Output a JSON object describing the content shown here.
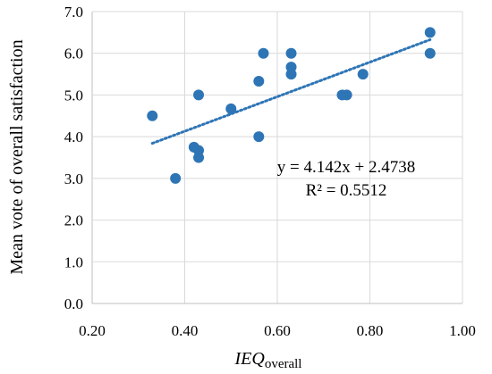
{
  "chart_data": {
    "type": "scatter",
    "xlabel_main": "IEQ",
    "xlabel_sub": "overall",
    "ylabel": "Mean vote of overall satisfaction",
    "xlim": [
      0.2,
      1.0
    ],
    "ylim": [
      0.0,
      7.0
    ],
    "x_ticks": [
      "0.20",
      "0.40",
      "0.60",
      "0.80",
      "1.00"
    ],
    "y_ticks": [
      "0.0",
      "1.0",
      "2.0",
      "3.0",
      "4.0",
      "5.0",
      "6.0",
      "7.0"
    ],
    "x_tick_values": [
      0.2,
      0.4,
      0.6,
      0.8,
      1.0
    ],
    "y_tick_values": [
      0,
      1,
      2,
      3,
      4,
      5,
      6,
      7
    ],
    "grid": "vertical and horizontal",
    "point_color": "#2e75b6",
    "trend_color": "#2e75b6",
    "points": [
      {
        "x": 0.33,
        "y": 4.5
      },
      {
        "x": 0.38,
        "y": 3.0
      },
      {
        "x": 0.42,
        "y": 3.75
      },
      {
        "x": 0.43,
        "y": 3.67
      },
      {
        "x": 0.43,
        "y": 3.5
      },
      {
        "x": 0.43,
        "y": 5.0
      },
      {
        "x": 0.5,
        "y": 4.67
      },
      {
        "x": 0.56,
        "y": 5.33
      },
      {
        "x": 0.56,
        "y": 4.0
      },
      {
        "x": 0.57,
        "y": 6.0
      },
      {
        "x": 0.63,
        "y": 6.0
      },
      {
        "x": 0.63,
        "y": 5.67
      },
      {
        "x": 0.63,
        "y": 5.5
      },
      {
        "x": 0.74,
        "y": 5.0
      },
      {
        "x": 0.75,
        "y": 5.0
      },
      {
        "x": 0.785,
        "y": 5.5
      },
      {
        "x": 0.93,
        "y": 6.5
      },
      {
        "x": 0.93,
        "y": 6.0
      }
    ],
    "trendline": {
      "slope": 4.142,
      "intercept": 2.4738,
      "x_range": [
        0.33,
        0.93
      ]
    },
    "equation_label": "y = 4.142x + 2.4738",
    "r2_label": "R² = 0.5512"
  }
}
